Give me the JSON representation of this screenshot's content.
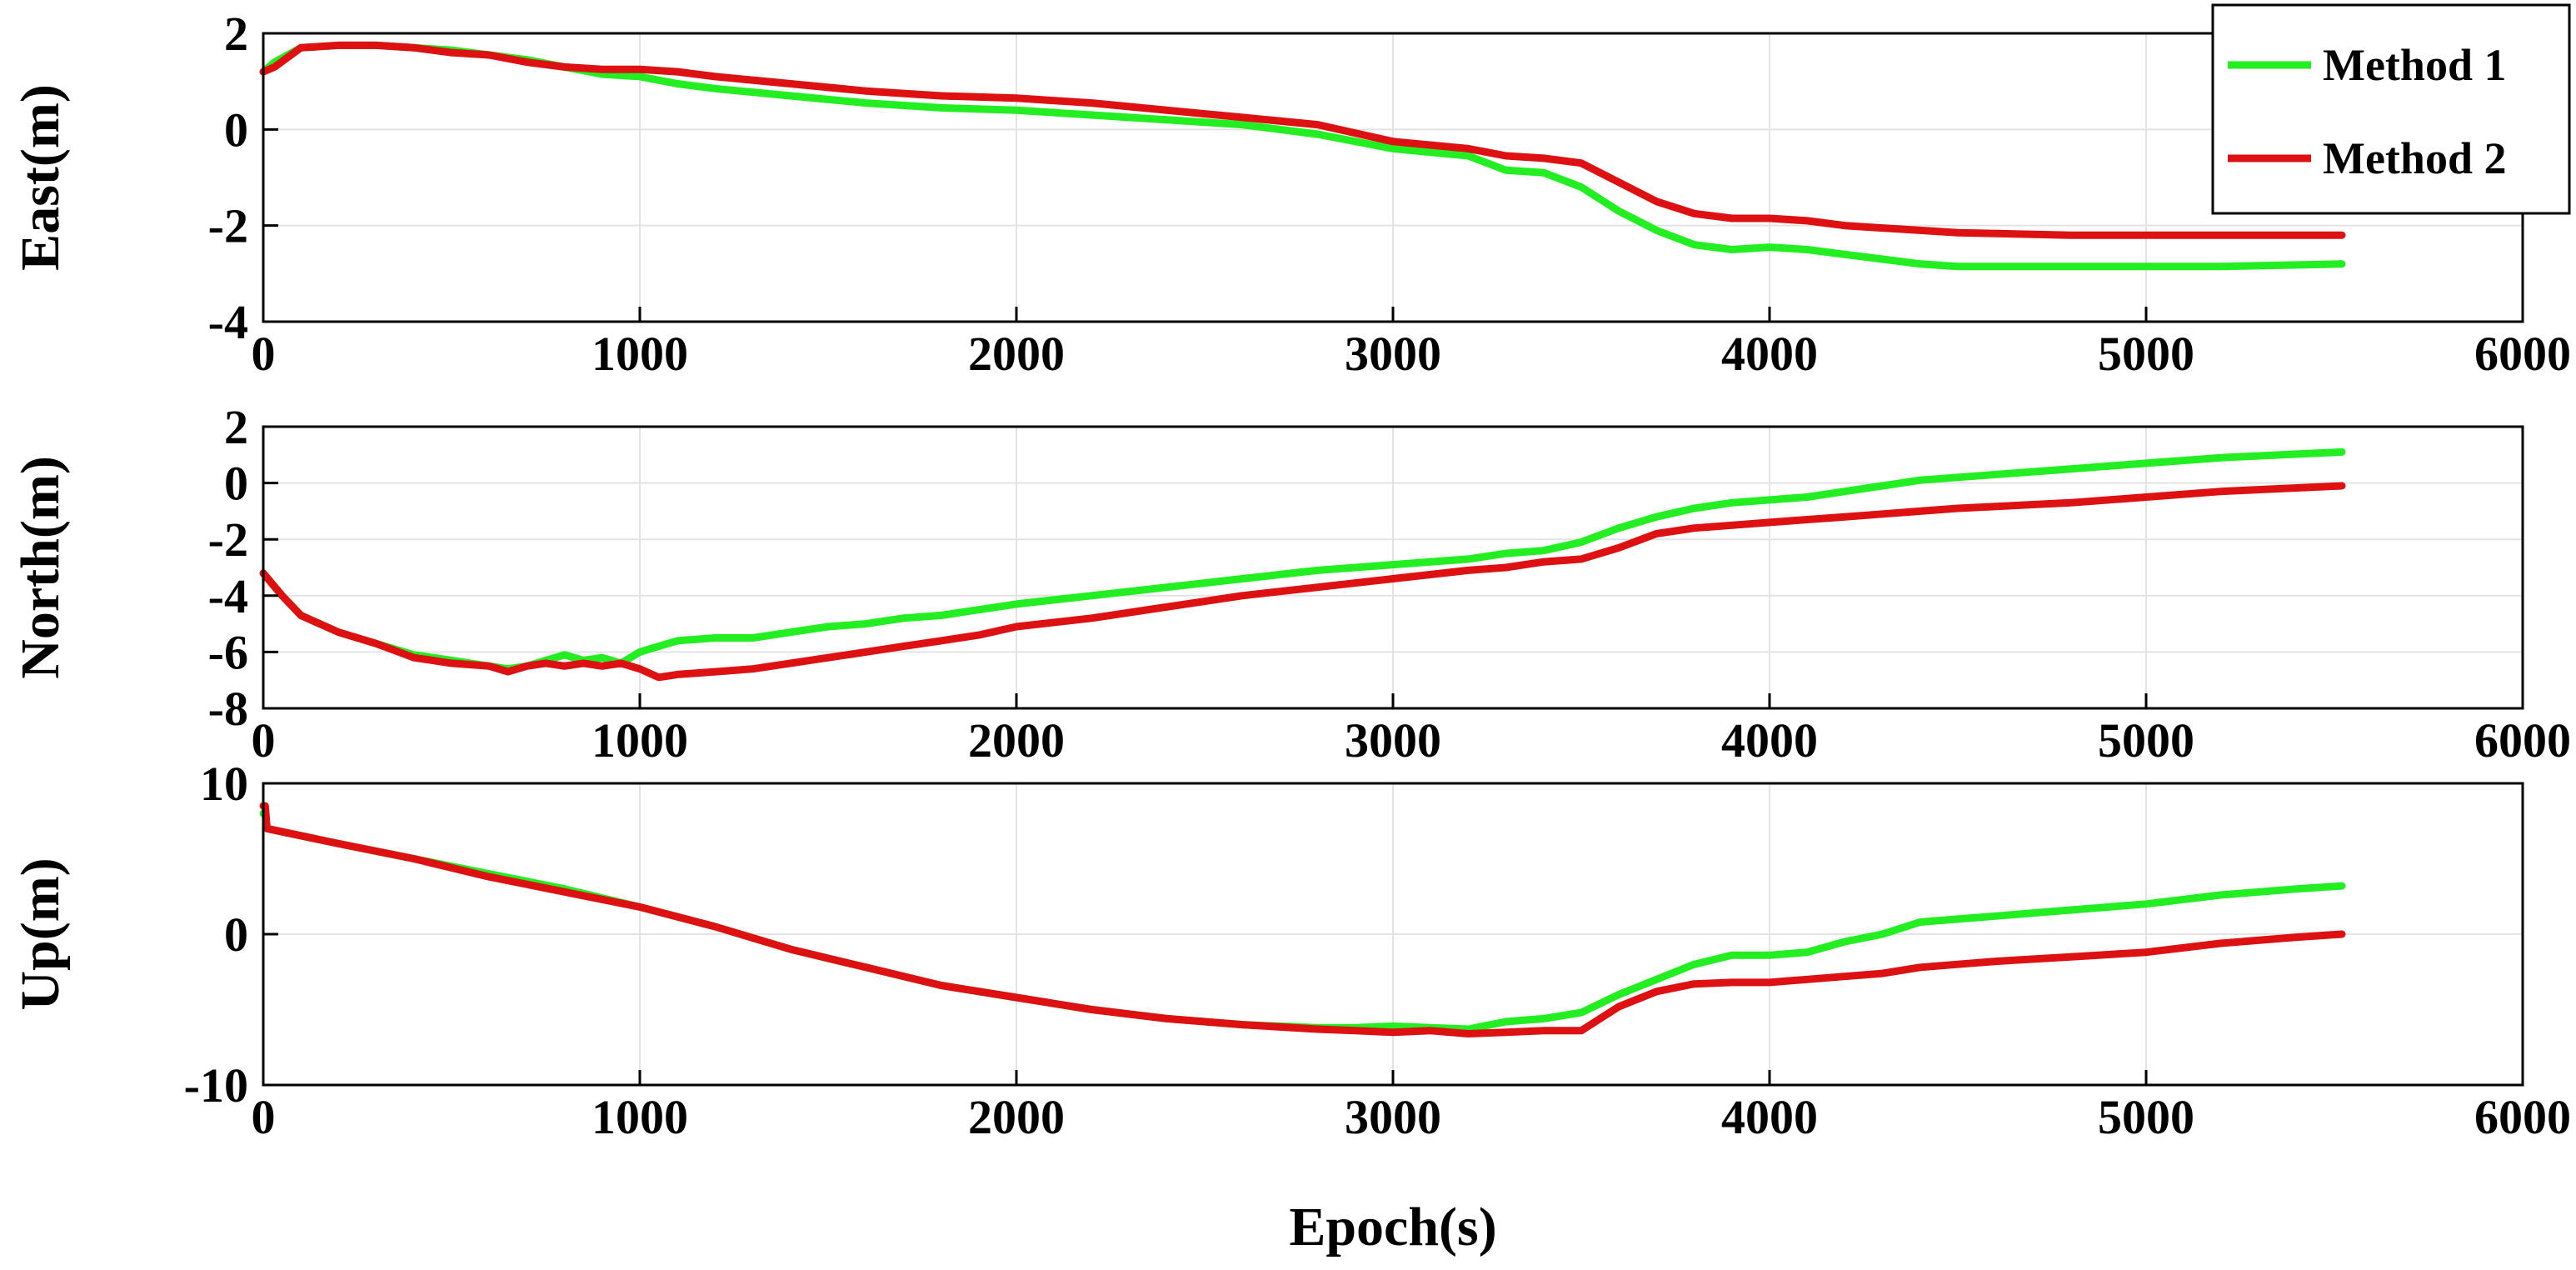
{
  "chart_data": [
    {
      "type": "line",
      "ylabel": "East(m)",
      "xlabel": "",
      "xlim": [
        0,
        6000
      ],
      "ylim": [
        -4,
        2
      ],
      "xticks": [
        0,
        1000,
        2000,
        3000,
        4000,
        5000,
        6000
      ],
      "xtick_labels": [
        "0",
        "1000",
        "2000",
        "3000",
        "4000",
        "5000",
        "6000"
      ],
      "yticks": [
        -4,
        -2,
        0,
        2
      ],
      "ytick_labels": [
        "-4",
        "-2",
        "0",
        "2"
      ],
      "grid": true,
      "series": [
        {
          "name": "Method 1",
          "color": "#22ee22",
          "x": [
            0,
            30,
            100,
            200,
            300,
            400,
            500,
            600,
            700,
            800,
            900,
            1000,
            1100,
            1200,
            1400,
            1600,
            1800,
            2000,
            2200,
            2400,
            2600,
            2800,
            3000,
            3200,
            3300,
            3400,
            3500,
            3600,
            3700,
            3800,
            3900,
            4000,
            4100,
            4200,
            4300,
            4400,
            4500,
            4800,
            5000,
            5200,
            5520
          ],
          "y": [
            1.2,
            1.4,
            1.7,
            1.75,
            1.75,
            1.7,
            1.65,
            1.55,
            1.45,
            1.3,
            1.15,
            1.1,
            0.95,
            0.85,
            0.7,
            0.55,
            0.45,
            0.4,
            0.3,
            0.2,
            0.1,
            -0.1,
            -0.4,
            -0.55,
            -0.85,
            -0.9,
            -1.2,
            -1.7,
            -2.1,
            -2.4,
            -2.5,
            -2.45,
            -2.5,
            -2.6,
            -2.7,
            -2.8,
            -2.85,
            -2.85,
            -2.85,
            -2.85,
            -2.8
          ]
        },
        {
          "name": "Method 2",
          "color": "#dd1111",
          "x": [
            0,
            30,
            100,
            200,
            300,
            400,
            500,
            600,
            700,
            800,
            900,
            1000,
            1100,
            1200,
            1400,
            1600,
            1800,
            2000,
            2200,
            2400,
            2600,
            2800,
            3000,
            3200,
            3300,
            3400,
            3500,
            3600,
            3700,
            3800,
            3900,
            4000,
            4100,
            4200,
            4300,
            4400,
            4500,
            4800,
            5000,
            5200,
            5520
          ],
          "y": [
            1.2,
            1.3,
            1.7,
            1.75,
            1.75,
            1.7,
            1.6,
            1.55,
            1.4,
            1.3,
            1.25,
            1.25,
            1.2,
            1.1,
            0.95,
            0.8,
            0.7,
            0.65,
            0.55,
            0.4,
            0.25,
            0.1,
            -0.25,
            -0.4,
            -0.55,
            -0.6,
            -0.7,
            -1.1,
            -1.5,
            -1.75,
            -1.85,
            -1.85,
            -1.9,
            -2.0,
            -2.05,
            -2.1,
            -2.15,
            -2.2,
            -2.2,
            -2.2,
            -2.2
          ]
        }
      ]
    },
    {
      "type": "line",
      "ylabel": "North(m)",
      "xlabel": "",
      "xlim": [
        0,
        6000
      ],
      "ylim": [
        -8,
        2
      ],
      "xticks": [
        0,
        1000,
        2000,
        3000,
        4000,
        5000,
        6000
      ],
      "xtick_labels": [
        "0",
        "1000",
        "2000",
        "3000",
        "4000",
        "5000",
        "6000"
      ],
      "yticks": [
        -8,
        -6,
        -4,
        -2,
        0,
        2
      ],
      "ytick_labels": [
        "-8",
        "-6",
        "-4",
        "-2",
        "0",
        "2"
      ],
      "grid": true,
      "series": [
        {
          "name": "Method 1",
          "color": "#22ee22",
          "x": [
            0,
            50,
            100,
            200,
            300,
            400,
            500,
            600,
            650,
            700,
            750,
            800,
            850,
            900,
            950,
            1000,
            1050,
            1100,
            1200,
            1300,
            1400,
            1500,
            1600,
            1700,
            1800,
            1900,
            2000,
            2200,
            2400,
            2600,
            2800,
            3000,
            3200,
            3300,
            3400,
            3500,
            3600,
            3700,
            3800,
            3900,
            4000,
            4100,
            4200,
            4300,
            4400,
            4500,
            4800,
            5000,
            5200,
            5520
          ],
          "y": [
            -3.2,
            -4.0,
            -4.7,
            -5.3,
            -5.7,
            -6.1,
            -6.3,
            -6.5,
            -6.6,
            -6.5,
            -6.3,
            -6.1,
            -6.3,
            -6.2,
            -6.4,
            -6.0,
            -5.8,
            -5.6,
            -5.5,
            -5.5,
            -5.3,
            -5.1,
            -5.0,
            -4.8,
            -4.7,
            -4.5,
            -4.3,
            -4.0,
            -3.7,
            -3.4,
            -3.1,
            -2.9,
            -2.7,
            -2.5,
            -2.4,
            -2.1,
            -1.6,
            -1.2,
            -0.9,
            -0.7,
            -0.6,
            -0.5,
            -0.3,
            -0.1,
            0.1,
            0.2,
            0.5,
            0.7,
            0.9,
            1.1
          ]
        },
        {
          "name": "Method 2",
          "color": "#dd1111",
          "x": [
            0,
            50,
            100,
            200,
            300,
            400,
            500,
            600,
            650,
            700,
            750,
            800,
            850,
            900,
            950,
            1000,
            1050,
            1100,
            1200,
            1300,
            1400,
            1500,
            1600,
            1700,
            1800,
            1900,
            2000,
            2200,
            2400,
            2600,
            2800,
            3000,
            3200,
            3300,
            3400,
            3500,
            3600,
            3700,
            3800,
            3900,
            4000,
            4100,
            4200,
            4300,
            4400,
            4500,
            4800,
            5000,
            5200,
            5520
          ],
          "y": [
            -3.2,
            -4.0,
            -4.7,
            -5.3,
            -5.7,
            -6.2,
            -6.4,
            -6.5,
            -6.7,
            -6.5,
            -6.4,
            -6.5,
            -6.4,
            -6.5,
            -6.4,
            -6.6,
            -6.9,
            -6.8,
            -6.7,
            -6.6,
            -6.4,
            -6.2,
            -6.0,
            -5.8,
            -5.6,
            -5.4,
            -5.1,
            -4.8,
            -4.4,
            -4.0,
            -3.7,
            -3.4,
            -3.1,
            -3.0,
            -2.8,
            -2.7,
            -2.3,
            -1.8,
            -1.6,
            -1.5,
            -1.4,
            -1.3,
            -1.2,
            -1.1,
            -1.0,
            -0.9,
            -0.7,
            -0.5,
            -0.3,
            -0.1
          ]
        }
      ]
    },
    {
      "type": "line",
      "ylabel": "Up(m)",
      "xlabel": "Epoch(s)",
      "xlim": [
        0,
        6000
      ],
      "ylim": [
        -10,
        10
      ],
      "xticks": [
        0,
        1000,
        2000,
        3000,
        4000,
        5000,
        6000
      ],
      "xtick_labels": [
        "0",
        "1000",
        "2000",
        "3000",
        "4000",
        "5000",
        "6000"
      ],
      "yticks": [
        -10,
        0,
        10
      ],
      "ytick_labels": [
        "-10",
        "0",
        "10"
      ],
      "grid": true,
      "series": [
        {
          "name": "Method 1",
          "color": "#22ee22",
          "x": [
            0,
            5,
            10,
            200,
            400,
            600,
            800,
            1000,
            1200,
            1400,
            1600,
            1800,
            2000,
            2200,
            2400,
            2600,
            2800,
            2900,
            3000,
            3100,
            3200,
            3300,
            3400,
            3500,
            3600,
            3700,
            3800,
            3900,
            4000,
            4100,
            4200,
            4300,
            4400,
            4500,
            4600,
            4800,
            5000,
            5200,
            5400,
            5520
          ],
          "y": [
            8,
            8,
            7,
            6,
            5,
            4,
            3,
            1.8,
            0.5,
            -1,
            -2.2,
            -3.4,
            -4.2,
            -5,
            -5.6,
            -6,
            -6.2,
            -6.2,
            -6.1,
            -6.2,
            -6.3,
            -5.8,
            -5.6,
            -5.2,
            -4,
            -3,
            -2,
            -1.4,
            -1.4,
            -1.2,
            -0.5,
            0,
            0.8,
            1,
            1.2,
            1.6,
            2,
            2.6,
            3,
            3.2
          ]
        },
        {
          "name": "Method 2",
          "color": "#dd1111",
          "x": [
            0,
            5,
            10,
            200,
            400,
            600,
            800,
            1000,
            1200,
            1400,
            1600,
            1800,
            2000,
            2200,
            2400,
            2600,
            2800,
            2900,
            3000,
            3100,
            3200,
            3300,
            3400,
            3500,
            3600,
            3700,
            3800,
            3900,
            4000,
            4100,
            4200,
            4300,
            4400,
            4500,
            4600,
            4800,
            5000,
            5200,
            5400,
            5520
          ],
          "y": [
            8.5,
            8.5,
            7,
            6,
            5,
            3.8,
            2.8,
            1.8,
            0.5,
            -1,
            -2.2,
            -3.4,
            -4.2,
            -5,
            -5.6,
            -6,
            -6.3,
            -6.4,
            -6.5,
            -6.4,
            -6.6,
            -6.5,
            -6.4,
            -6.4,
            -4.8,
            -3.8,
            -3.3,
            -3.2,
            -3.2,
            -3,
            -2.8,
            -2.6,
            -2.2,
            -2,
            -1.8,
            -1.5,
            -1.2,
            -0.6,
            -0.2,
            0
          ]
        }
      ]
    }
  ],
  "legend": {
    "entries": [
      "Method 1",
      "Method 2"
    ],
    "colors": [
      "#22ee22",
      "#dd1111"
    ],
    "placement": "top-right"
  }
}
